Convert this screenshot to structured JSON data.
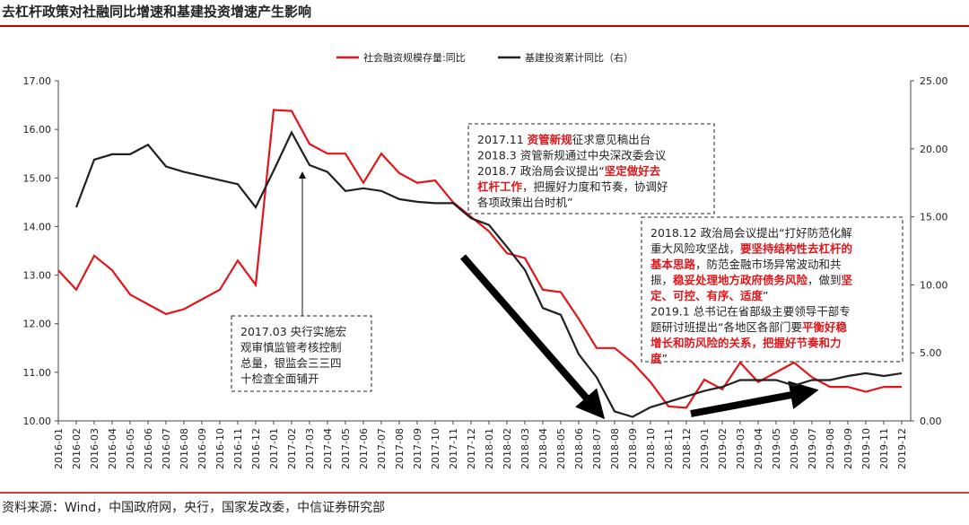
{
  "chart_data": {
    "type": "line",
    "title": "去杠杆政策对社融同比增速和基建投资增速产生影响",
    "source": "资料来源：Wind，中国政府网，央行，国家发改委，中信证券研究部",
    "categories": [
      "2016-01",
      "2016-02",
      "2016-03",
      "2016-04",
      "2016-05",
      "2016-06",
      "2016-07",
      "2016-08",
      "2016-09",
      "2016-10",
      "2016-11",
      "2016-12",
      "2017-01",
      "2017-02",
      "2017-03",
      "2017-04",
      "2017-05",
      "2017-06",
      "2017-07",
      "2017-08",
      "2017-09",
      "2017-10",
      "2017-11",
      "2017-12",
      "2018-01",
      "2018-02",
      "2018-03",
      "2018-04",
      "2018-05",
      "2018-06",
      "2018-07",
      "2018-08",
      "2018-09",
      "2018-10",
      "2018-11",
      "2018-12",
      "2019-01",
      "2019-02",
      "2019-03",
      "2019-04",
      "2019-05",
      "2019-06",
      "2019-07",
      "2019-08",
      "2019-09",
      "2019-10",
      "2019-11",
      "2019-12"
    ],
    "series": [
      {
        "name": "社会融资规模存量:同比",
        "color": "#e0161b",
        "axis": "y",
        "values": [
          13.1,
          12.7,
          13.4,
          13.1,
          12.6,
          12.4,
          12.2,
          12.3,
          12.5,
          12.7,
          13.3,
          12.8,
          16.4,
          16.38,
          15.7,
          15.5,
          15.5,
          14.9,
          15.5,
          15.1,
          14.9,
          14.95,
          14.5,
          14.2,
          13.9,
          13.45,
          13.35,
          12.7,
          12.65,
          12.1,
          11.5,
          11.5,
          11.2,
          10.8,
          10.3,
          10.27,
          10.85,
          10.65,
          11.2,
          10.8,
          11.0,
          11.2,
          10.9,
          10.7,
          10.7,
          10.6,
          10.7,
          10.7
        ]
      },
      {
        "name": "基建投资累计同比（右）",
        "color": "#231f20",
        "axis": "y2",
        "values": [
          null,
          15.7,
          19.2,
          19.6,
          19.6,
          20.3,
          18.7,
          18.3,
          18.0,
          17.7,
          17.4,
          15.7,
          18.4,
          21.2,
          18.8,
          18.3,
          16.9,
          17.1,
          16.9,
          16.3,
          16.1,
          16.0,
          16.0,
          14.9,
          14.4,
          12.8,
          11.1,
          8.3,
          7.8,
          4.9,
          3.2,
          0.7,
          0.3,
          1.0,
          1.4,
          1.8,
          2.2,
          2.5,
          3.0,
          3.0,
          3.0,
          2.6,
          3.0,
          3.0,
          3.3,
          3.5,
          3.3,
          3.5
        ]
      }
    ],
    "ylim": [
      10,
      17
    ],
    "yticks": [
      {
        "value": 10,
        "label": "10.00"
      },
      {
        "value": 11,
        "label": "11.00"
      },
      {
        "value": 12,
        "label": "12.00"
      },
      {
        "value": 13,
        "label": "13.00"
      },
      {
        "value": 14,
        "label": "14.00"
      },
      {
        "value": 15,
        "label": "15.00"
      },
      {
        "value": 16,
        "label": "16.00"
      },
      {
        "value": 17,
        "label": "17.00"
      }
    ],
    "y2lim": [
      0,
      25
    ],
    "y2ticks": [
      {
        "value": 0,
        "label": "0.00"
      },
      {
        "value": 5,
        "label": "5.00"
      },
      {
        "value": 10,
        "label": "10.00"
      },
      {
        "value": 15,
        "label": "15.00"
      },
      {
        "value": 20,
        "label": "20.00"
      },
      {
        "value": 25,
        "label": "25.00"
      }
    ],
    "grid": false,
    "legend": "top",
    "annotations": [
      {
        "lines": [
          [
            {
              "text": "2017.11  "
            },
            {
              "text": "资管新规",
              "emph": true
            },
            {
              "text": "征求意见稿出台"
            }
          ],
          [
            {
              "text": "2018.3   资管新规通过中央深改委会议"
            }
          ],
          [
            {
              "text": "2018.7   政治局会议提出“"
            },
            {
              "text": "坚定做好去",
              "emph": true
            }
          ],
          [
            {
              "text": "杠杆工作",
              "emph": true
            },
            {
              "text": "，把握好力度和节奏，协调好"
            }
          ],
          [
            {
              "text": "各项政策出台时机”"
            }
          ]
        ]
      },
      {
        "lines": [
          [
            {
              "text": "2018.12   政治局会议提出“打好防范化解"
            }
          ],
          [
            {
              "text": "重大风险攻坚战，"
            },
            {
              "text": "要坚持结构性去杠杆的",
              "emph": true
            }
          ],
          [
            {
              "text": "基本思路",
              "emph": true
            },
            {
              "text": "，防范金融市场异常波动和共"
            }
          ],
          [
            {
              "text": "振，"
            },
            {
              "text": "稳妥处理地方政府债务风险",
              "emph": true
            },
            {
              "text": "，做到"
            },
            {
              "text": "坚",
              "emph": true
            }
          ],
          [
            {
              "text": "定、可控、有序、适度",
              "emph": true
            },
            {
              "text": "”"
            }
          ],
          [
            {
              "text": "2019.1   总书记在省部级主要领导干部专"
            }
          ],
          [
            {
              "text": "题研讨班提出“各地区各部门要"
            },
            {
              "text": "平衡好稳",
              "emph": true
            }
          ],
          [
            {
              "text": "增长和防风险的关系，把握好节奏和力",
              "emph": true
            }
          ],
          [
            {
              "text": "度",
              "emph": true
            },
            {
              "text": "”"
            }
          ]
        ]
      },
      {
        "lines": [
          [
            {
              "text": "2017.03  央行实施宏"
            }
          ],
          [
            {
              "text": "观审慎监管考核控制"
            }
          ],
          [
            {
              "text": "总量，银监会三三四"
            }
          ],
          [
            {
              "text": "十检查全面铺开"
            }
          ]
        ]
      }
    ]
  }
}
